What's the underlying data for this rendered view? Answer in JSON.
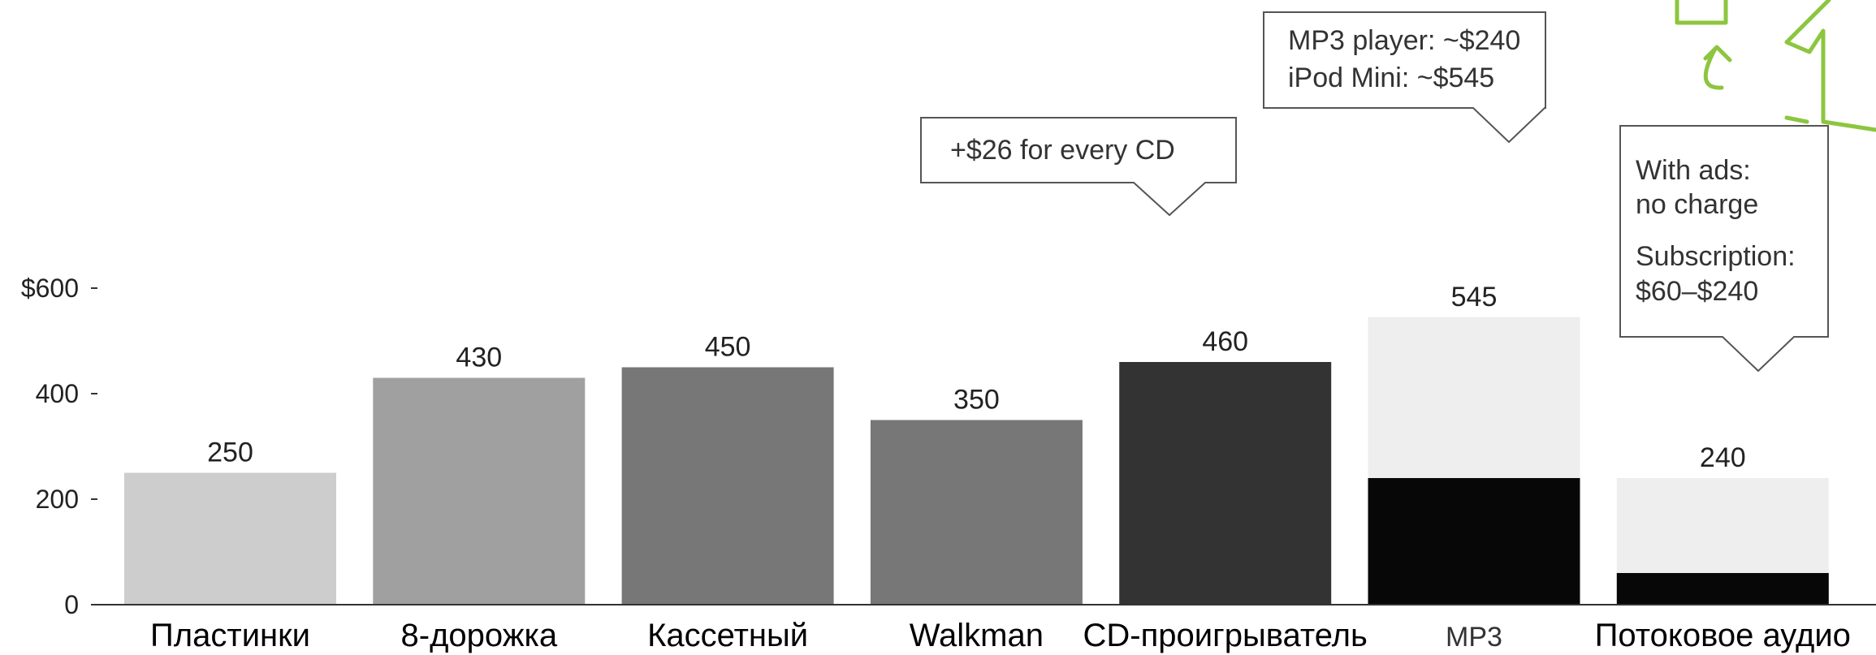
{
  "chart_data": {
    "type": "bar",
    "title": "",
    "xlabel": "",
    "ylabel": "",
    "ylim": [
      0,
      600
    ],
    "yticks": [
      {
        "value": 0,
        "label": "0"
      },
      {
        "value": 200,
        "label": "200"
      },
      {
        "value": 400,
        "label": "400"
      },
      {
        "value": 600,
        "label": "$600"
      }
    ],
    "grid": false,
    "legend": "none",
    "categories": [
      "Пластинки",
      "8-дорожка",
      "Кассетный",
      "Walkman",
      "CD-проигрыватель",
      "MP3",
      "Потоковое аудио"
    ],
    "bars": [
      {
        "category": "Пластинки",
        "total": 250,
        "label": "250",
        "base": null,
        "color": "#cdcdcd",
        "base_color": null
      },
      {
        "category": "8-дорожка",
        "total": 430,
        "label": "430",
        "base": null,
        "color": "#a0a0a0",
        "base_color": null
      },
      {
        "category": "Кассетный",
        "total": 450,
        "label": "450",
        "base": null,
        "color": "#777777",
        "base_color": null
      },
      {
        "category": "Walkman",
        "total": 350,
        "label": "350",
        "base": null,
        "color": "#777777",
        "base_color": null
      },
      {
        "category": "CD-проигрыватель",
        "total": 460,
        "label": "460",
        "base": null,
        "color": "#333333",
        "base_color": null
      },
      {
        "category": "MP3",
        "total": 545,
        "label": "545",
        "base": 240,
        "color": "#eeeeee",
        "base_color": "#070707"
      },
      {
        "category": "Потоковое аудио",
        "total": 240,
        "label": "240",
        "base": 60,
        "color": "#eeeeee",
        "base_color": "#070707"
      }
    ],
    "annotations": [
      {
        "target": "CD-проигрыватель",
        "lines": [
          "+$26 for every CD"
        ]
      },
      {
        "target": "MP3",
        "lines": [
          "MP3 player: ~$240",
          "iPod Mini: ~$545"
        ]
      },
      {
        "target": "Потоковое аудио",
        "lines": [
          "With ads:",
          "no charge",
          "Subscription:",
          "$60–$240"
        ]
      }
    ]
  }
}
